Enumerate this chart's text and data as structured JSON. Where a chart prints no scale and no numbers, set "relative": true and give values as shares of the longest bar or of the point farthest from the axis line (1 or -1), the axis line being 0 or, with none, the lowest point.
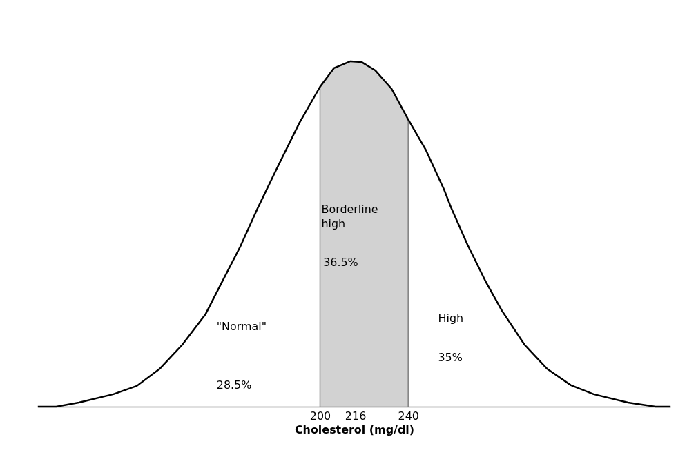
{
  "chart_data": {
    "type": "line",
    "relative": true,
    "xlabel": "Cholesterol (mg/dl)",
    "x": [
      72,
      80.3,
      90.6,
      106.3,
      116.9,
      127.2,
      137.5,
      148.1,
      155.3,
      163.8,
      171.9,
      180.3,
      190.6,
      200,
      206.3,
      213.8,
      218.8,
      225,
      232.5,
      239.7,
      248.1,
      256.3,
      259.4,
      266.9,
      275,
      282.5,
      292.8,
      303.1,
      313.8,
      324.1,
      339.7,
      352.2,
      359
    ],
    "series": [
      {
        "color": "#000000",
        "values": [
          0,
          0,
          0.012,
          0.036,
          0.06,
          0.109,
          0.179,
          0.268,
          0.358,
          0.463,
          0.577,
          0.688,
          0.821,
          0.926,
          0.98,
          1,
          0.998,
          0.974,
          0.92,
          0.835,
          0.742,
          0.628,
          0.577,
          0.469,
          0.364,
          0.278,
          0.179,
          0.109,
          0.062,
          0.036,
          0.012,
          0,
          0
        ]
      }
    ],
    "xlim": [
      72,
      359
    ],
    "xticks": [
      200,
      216,
      240
    ],
    "bands": [
      {
        "axis": "x",
        "from": 200,
        "to": 240,
        "label": "Borderline high",
        "color": "#7f7f7f"
      }
    ],
    "annotations": [
      "36.5%",
      "\"Normal\"",
      "28.5%",
      "High",
      "35%"
    ]
  }
}
